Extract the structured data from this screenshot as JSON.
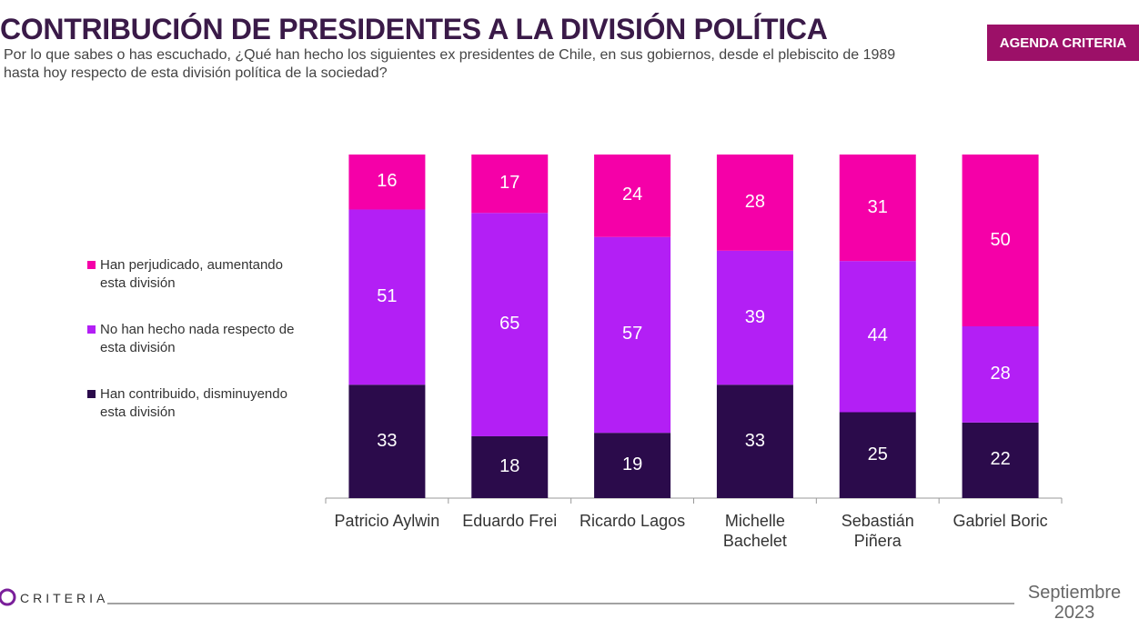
{
  "header": {
    "badge": "AGENDA CRITERIA"
  },
  "footer": {
    "logo": "CRITERIA",
    "date": "Septiembre 2023"
  },
  "chart_data": {
    "type": "stacked_bar",
    "title": "CONTRIBUCIÓN DE PRESIDENTES A LA DIVISIÓN POLÍTICA",
    "subtitle": "Por lo que sabes o has escuchado, ¿Qué han hecho los siguientes ex presidentes de Chile, en sus gobiernos, desde el plebiscito de 1989 hasta hoy respecto de esta división política de la sociedad?",
    "categories": [
      "Patricio Aylwin",
      "Eduardo Frei",
      "Ricardo Lagos",
      "Michelle Bachelet",
      "Sebastián Piñera",
      "Gabriel Boric"
    ],
    "series": [
      {
        "name": "Han perjudicado, aumentando esta división",
        "color": "#f500a8",
        "values": [
          16,
          17,
          24,
          28,
          31,
          50
        ]
      },
      {
        "name": "No han hecho nada respecto de esta división",
        "color": "#b31ff5",
        "values": [
          51,
          65,
          57,
          39,
          44,
          28
        ]
      },
      {
        "name": "Han contribuido, disminuyendo esta división",
        "color": "#2b0b4b",
        "values": [
          33,
          18,
          19,
          33,
          25,
          22
        ]
      }
    ]
  }
}
